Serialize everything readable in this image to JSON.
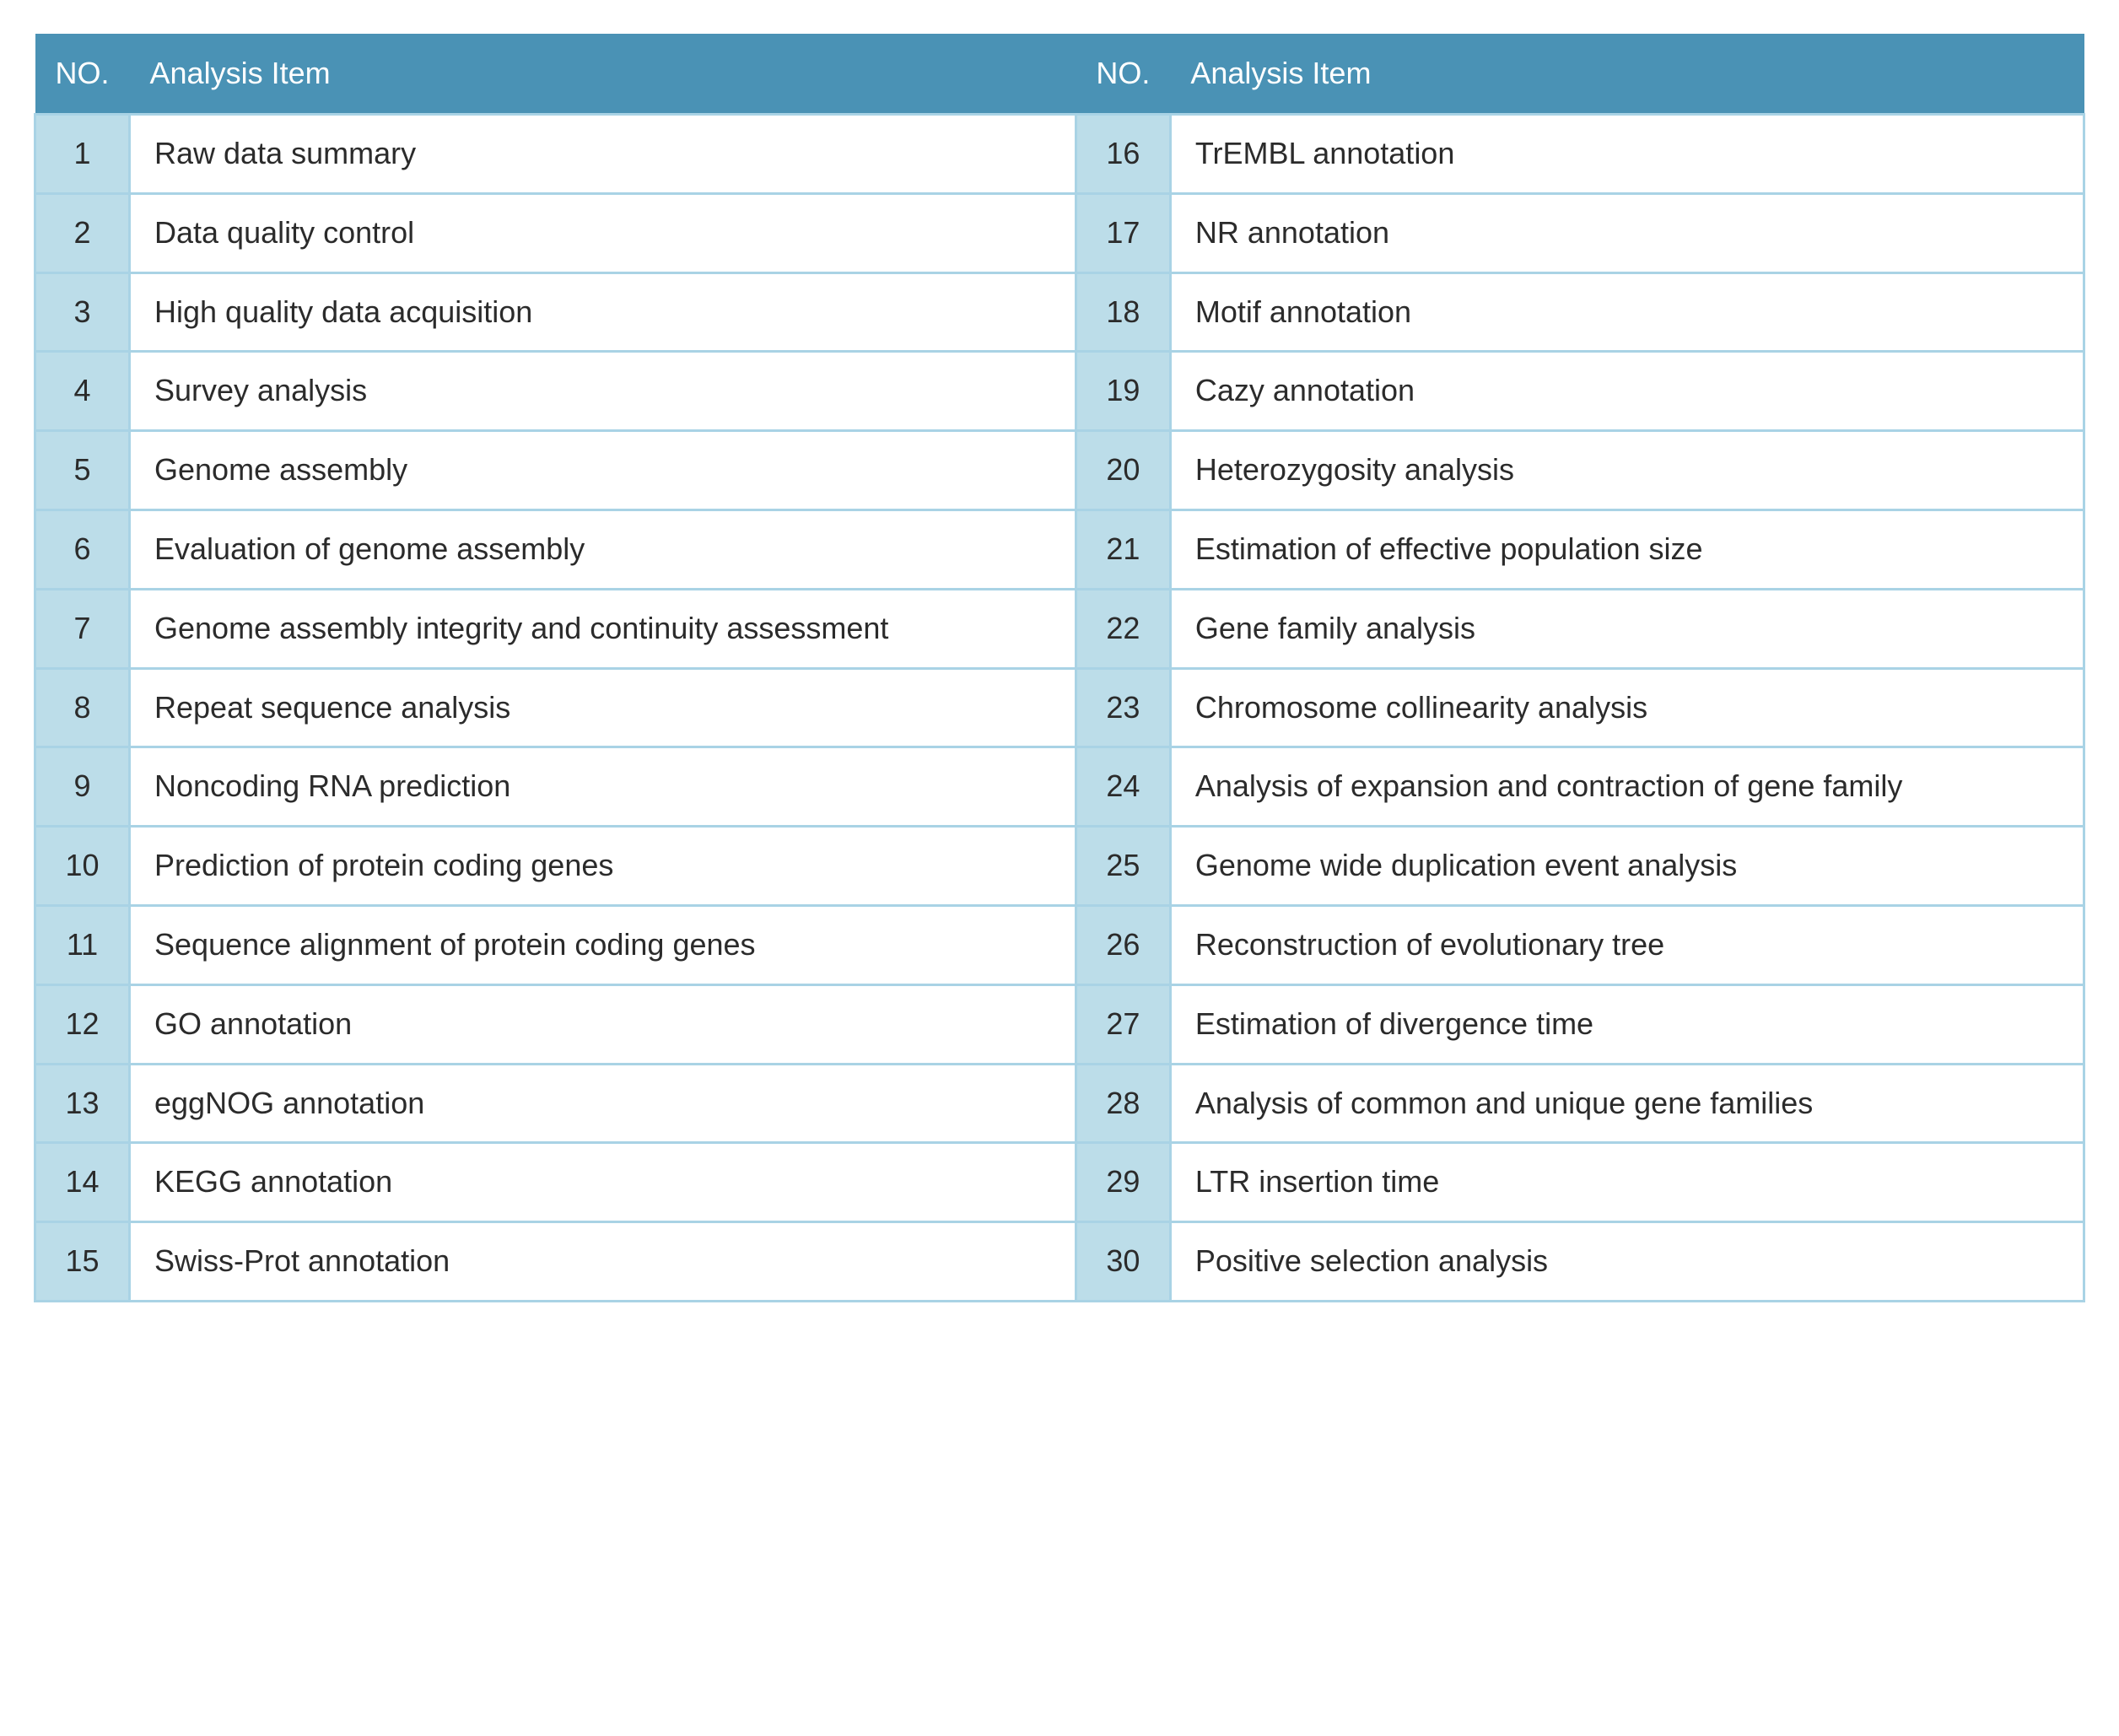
{
  "table": {
    "headers": {
      "no": "NO.",
      "item": "Analysis Item"
    },
    "left_column": [
      {
        "no": "1",
        "item": "Raw data summary"
      },
      {
        "no": "2",
        "item": "Data quality control"
      },
      {
        "no": "3",
        "item": "High quality data acquisition"
      },
      {
        "no": "4",
        "item": "Survey analysis"
      },
      {
        "no": "5",
        "item": "Genome assembly"
      },
      {
        "no": "6",
        "item": "Evaluation of genome assembly"
      },
      {
        "no": "7",
        "item": "Genome assembly integrity and continuity assessment"
      },
      {
        "no": "8",
        "item": "Repeat sequence analysis"
      },
      {
        "no": "9",
        "item": "Noncoding RNA prediction"
      },
      {
        "no": "10",
        "item": "Prediction of protein coding genes"
      },
      {
        "no": "11",
        "item": "Sequence alignment of protein coding genes"
      },
      {
        "no": "12",
        "item": "GO annotation"
      },
      {
        "no": "13",
        "item": "eggNOG annotation"
      },
      {
        "no": "14",
        "item": "KEGG annotation"
      },
      {
        "no": "15",
        "item": "Swiss-Prot annotation"
      }
    ],
    "right_column": [
      {
        "no": "16",
        "item": "TrEMBL annotation"
      },
      {
        "no": "17",
        "item": "NR annotation"
      },
      {
        "no": "18",
        "item": "Motif annotation"
      },
      {
        "no": "19",
        "item": "Cazy annotation"
      },
      {
        "no": "20",
        "item": "Heterozygosity analysis"
      },
      {
        "no": "21",
        "item": "Estimation of effective population size"
      },
      {
        "no": "22",
        "item": "Gene family analysis"
      },
      {
        "no": "23",
        "item": "Chromosome collinearity analysis"
      },
      {
        "no": "24",
        "item": "Analysis of expansion and contraction of gene family"
      },
      {
        "no": "25",
        "item": "Genome wide duplication event analysis"
      },
      {
        "no": "26",
        "item": "Reconstruction of evolutionary tree"
      },
      {
        "no": "27",
        "item": "Estimation of divergence time"
      },
      {
        "no": "28",
        "item": "Analysis of common and unique gene families"
      },
      {
        "no": "29",
        "item": "LTR insertion time"
      },
      {
        "no": "30",
        "item": "Positive selection analysis"
      }
    ],
    "colors": {
      "header_bg": "#4a92b5",
      "header_text": "#ffffff",
      "no_cell_bg": "#bcdde9",
      "item_cell_bg": "#ffffff",
      "border_color": "#a9d3e5",
      "text_color": "#2b2b2b"
    },
    "typography": {
      "font_size": 36,
      "header_font_weight": 500,
      "no_font_weight": 500
    }
  }
}
